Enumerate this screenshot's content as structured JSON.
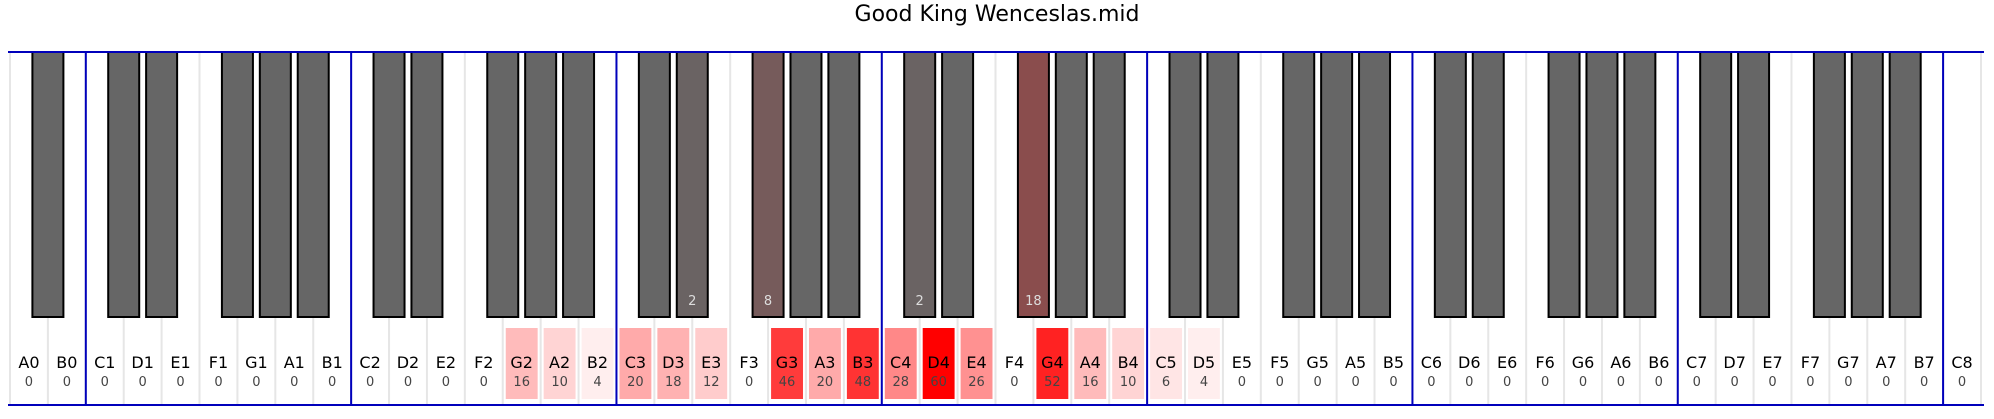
{
  "chart_data": {
    "type": "heatmap",
    "title": "Good King Wenceslas.mid",
    "max_value": 60,
    "colors": {
      "highlight": "#ff0000",
      "black_key": "#666666",
      "octave_line": "#0000bb",
      "key_divider": "#e6e6e6",
      "label": "#000000",
      "count": "#444444",
      "black_count": "#dddddd"
    },
    "white_keys": [
      {
        "note": "A0",
        "count": 0
      },
      {
        "note": "B0",
        "count": 0
      },
      {
        "note": "C1",
        "count": 0
      },
      {
        "note": "D1",
        "count": 0
      },
      {
        "note": "E1",
        "count": 0
      },
      {
        "note": "F1",
        "count": 0
      },
      {
        "note": "G1",
        "count": 0
      },
      {
        "note": "A1",
        "count": 0
      },
      {
        "note": "B1",
        "count": 0
      },
      {
        "note": "C2",
        "count": 0
      },
      {
        "note": "D2",
        "count": 0
      },
      {
        "note": "E2",
        "count": 0
      },
      {
        "note": "F2",
        "count": 0
      },
      {
        "note": "G2",
        "count": 16
      },
      {
        "note": "A2",
        "count": 10
      },
      {
        "note": "B2",
        "count": 4
      },
      {
        "note": "C3",
        "count": 20
      },
      {
        "note": "D3",
        "count": 18
      },
      {
        "note": "E3",
        "count": 12
      },
      {
        "note": "F3",
        "count": 0
      },
      {
        "note": "G3",
        "count": 46
      },
      {
        "note": "A3",
        "count": 20
      },
      {
        "note": "B3",
        "count": 48
      },
      {
        "note": "C4",
        "count": 28
      },
      {
        "note": "D4",
        "count": 60
      },
      {
        "note": "E4",
        "count": 26
      },
      {
        "note": "F4",
        "count": 0
      },
      {
        "note": "G4",
        "count": 52
      },
      {
        "note": "A4",
        "count": 16
      },
      {
        "note": "B4",
        "count": 10
      },
      {
        "note": "C5",
        "count": 6
      },
      {
        "note": "D5",
        "count": 4
      },
      {
        "note": "E5",
        "count": 0
      },
      {
        "note": "F5",
        "count": 0
      },
      {
        "note": "G5",
        "count": 0
      },
      {
        "note": "A5",
        "count": 0
      },
      {
        "note": "B5",
        "count": 0
      },
      {
        "note": "C6",
        "count": 0
      },
      {
        "note": "D6",
        "count": 0
      },
      {
        "note": "E6",
        "count": 0
      },
      {
        "note": "F6",
        "count": 0
      },
      {
        "note": "G6",
        "count": 0
      },
      {
        "note": "A6",
        "count": 0
      },
      {
        "note": "B6",
        "count": 0
      },
      {
        "note": "C7",
        "count": 0
      },
      {
        "note": "D7",
        "count": 0
      },
      {
        "note": "E7",
        "count": 0
      },
      {
        "note": "F7",
        "count": 0
      },
      {
        "note": "G7",
        "count": 0
      },
      {
        "note": "A7",
        "count": 0
      },
      {
        "note": "B7",
        "count": 0
      },
      {
        "note": "C8",
        "count": 0
      }
    ],
    "black_keys": [
      {
        "note": "A#0",
        "count": 0
      },
      {
        "note": "C#1",
        "count": 0
      },
      {
        "note": "D#1",
        "count": 0
      },
      {
        "note": "F#1",
        "count": 0
      },
      {
        "note": "G#1",
        "count": 0
      },
      {
        "note": "A#1",
        "count": 0
      },
      {
        "note": "C#2",
        "count": 0
      },
      {
        "note": "D#2",
        "count": 0
      },
      {
        "note": "F#2",
        "count": 0
      },
      {
        "note": "G#2",
        "count": 0
      },
      {
        "note": "A#2",
        "count": 0
      },
      {
        "note": "C#3",
        "count": 0
      },
      {
        "note": "D#3",
        "count": 2
      },
      {
        "note": "F#3",
        "count": 8
      },
      {
        "note": "G#3",
        "count": 0
      },
      {
        "note": "A#3",
        "count": 0
      },
      {
        "note": "C#4",
        "count": 2
      },
      {
        "note": "D#4",
        "count": 0
      },
      {
        "note": "F#4",
        "count": 18
      },
      {
        "note": "G#4",
        "count": 0
      },
      {
        "note": "A#4",
        "count": 0
      },
      {
        "note": "C#5",
        "count": 0
      },
      {
        "note": "D#5",
        "count": 0
      },
      {
        "note": "F#5",
        "count": 0
      },
      {
        "note": "G#5",
        "count": 0
      },
      {
        "note": "A#5",
        "count": 0
      },
      {
        "note": "C#6",
        "count": 0
      },
      {
        "note": "D#6",
        "count": 0
      },
      {
        "note": "F#6",
        "count": 0
      },
      {
        "note": "G#6",
        "count": 0
      },
      {
        "note": "A#6",
        "count": 0
      },
      {
        "note": "C#7",
        "count": 0
      },
      {
        "note": "D#7",
        "count": 0
      },
      {
        "note": "F#7",
        "count": 0
      },
      {
        "note": "G#7",
        "count": 0
      },
      {
        "note": "A#7",
        "count": 0
      }
    ]
  }
}
